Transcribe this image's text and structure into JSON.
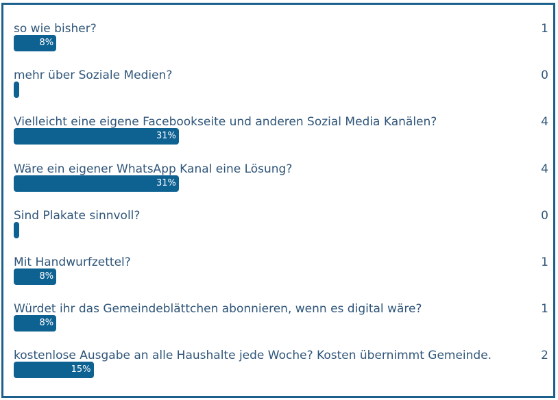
{
  "colors": {
    "bar": "#0e6292",
    "text": "#2f5579",
    "border": "#1b5f8c"
  },
  "options": [
    {
      "label": "so wie bisher?",
      "count": "1",
      "percent_label": "8%",
      "percent": 8
    },
    {
      "label": "mehr über Soziale Medien?",
      "count": "0",
      "percent_label": "",
      "percent": 0
    },
    {
      "label": "Vielleicht eine eigene Facebookseite und anderen Sozial Media Kanälen?",
      "count": "4",
      "percent_label": "31%",
      "percent": 31
    },
    {
      "label": "Wäre ein eigener WhatsApp Kanal eine Lösung?",
      "count": "4",
      "percent_label": "31%",
      "percent": 31
    },
    {
      "label": "Sind Plakate sinnvoll?",
      "count": "0",
      "percent_label": "",
      "percent": 0
    },
    {
      "label": "Mit Handwurfzettel?",
      "count": "1",
      "percent_label": "8%",
      "percent": 8
    },
    {
      "label": "Würdet ihr das Gemeindeblättchen abonnieren, wenn es digital wäre?",
      "count": "1",
      "percent_label": "8%",
      "percent": 8
    },
    {
      "label": "kostenlose Ausgabe an alle Haushalte jede Woche? Kosten übernimmt Gemeinde.",
      "count": "2",
      "percent_label": "15%",
      "percent": 15
    }
  ]
}
